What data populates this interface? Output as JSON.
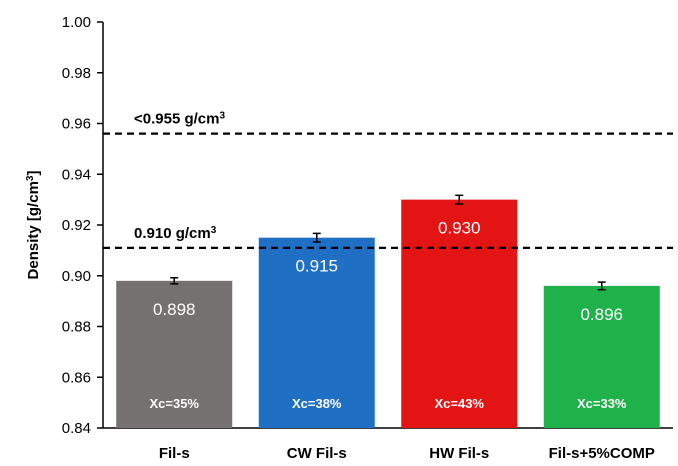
{
  "chart_data": {
    "type": "bar",
    "ylabel": "Density [g/cm3]",
    "ylabel_parts": {
      "base": "Density [g/cm",
      "sup": "3",
      "end": "]"
    },
    "ylim": [
      0.84,
      1.0
    ],
    "yticks": [
      "0.84",
      "0.86",
      "0.88",
      "0.90",
      "0.92",
      "0.94",
      "0.96",
      "0.98",
      "1.00"
    ],
    "categories": [
      "Fil-s",
      "CW Fil-s",
      "HW Fil-s",
      "Fil-s+5%COMP"
    ],
    "values": [
      0.898,
      0.915,
      0.93,
      0.896
    ],
    "value_labels": [
      "0.898",
      "0.915",
      "0.930",
      "0.896"
    ],
    "errors": [
      0.0012,
      0.0017,
      0.0017,
      0.0015
    ],
    "bar_notes": [
      "Xc=35%",
      "Xc=38%",
      "Xc=43%",
      "Xc=33%"
    ],
    "colors": [
      "#767171",
      "#1f6fc5",
      "#e31414",
      "#1fb14a"
    ],
    "reference_lines": [
      {
        "value": 0.956,
        "label": "<0.955 g/cm",
        "sup": "3"
      },
      {
        "value": 0.911,
        "label": "0.910 g/cm",
        "sup": "3"
      }
    ],
    "grid": false,
    "legend": "none"
  }
}
